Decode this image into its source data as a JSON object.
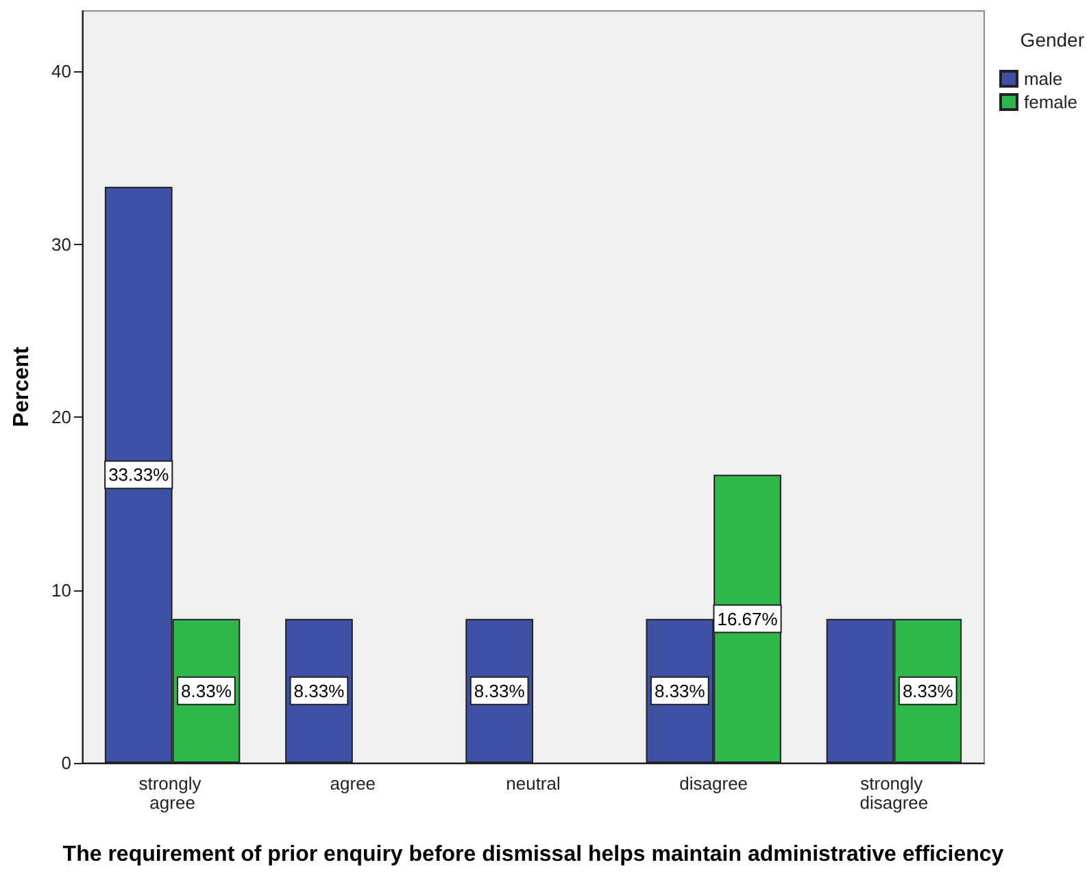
{
  "chart_data": {
    "type": "bar",
    "xlabel": "The requirement of prior enquiry before dismissal helps maintain administrative efficiency",
    "ylabel": "Percent",
    "legend_title": "Gender",
    "categories": [
      "strongly agree",
      "agree",
      "neutral",
      "disagree",
      "strongly disagree"
    ],
    "series": [
      {
        "name": "male",
        "color": "#3f51a5",
        "values": [
          33.33,
          8.33,
          8.33,
          8.33,
          8.33
        ],
        "value_labels": [
          "33.33%",
          "8.33%",
          "8.33%",
          "8.33%",
          null
        ]
      },
      {
        "name": "female",
        "color": "#2eb84b",
        "values": [
          8.33,
          null,
          null,
          16.67,
          8.33
        ],
        "value_labels": [
          "8.33%",
          null,
          null,
          "16.67%",
          "8.33%"
        ]
      }
    ],
    "ylim": [
      0,
      43.5
    ],
    "yticks": [
      0,
      10,
      20,
      30,
      40
    ],
    "grid": false,
    "legend": "top right"
  }
}
